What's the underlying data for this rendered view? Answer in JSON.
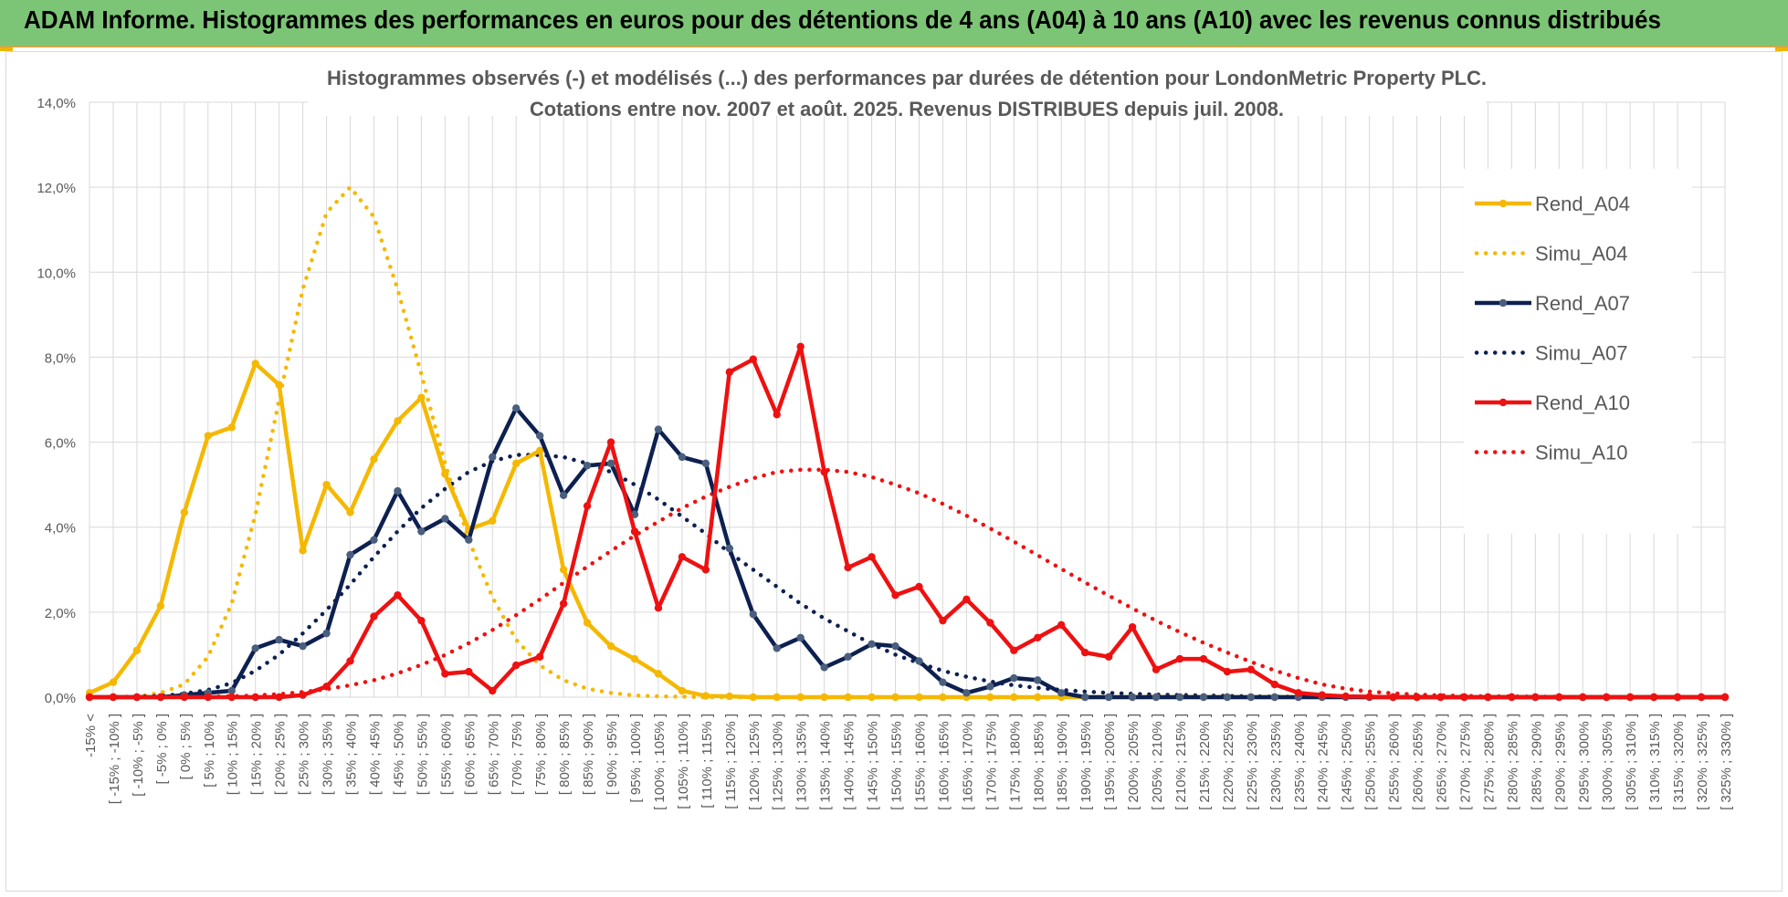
{
  "header": {
    "title": "ADAM Informe. Histogrammes des performances en euros pour des détentions de 4 ans (A04) à 10 ans (A10) avec les revenus connus distribués"
  },
  "chart_data": {
    "type": "line",
    "title_line1": "Histogrammes observés (-) et modélisés (...) des performances par durées de détention pour LondonMetric Property PLC.",
    "title_line2": "Cotations entre nov. 2007 et août. 2025. Revenus DISTRIBUES depuis juil. 2008.",
    "ylim": [
      0,
      14
    ],
    "y_ticks": [
      "0,0%",
      "2,0%",
      "4,0%",
      "6,0%",
      "8,0%",
      "10,0%",
      "12,0%",
      "14,0%"
    ],
    "grid": true,
    "legend_position": "right",
    "categories": [
      "-15% <",
      "[ -15% ; -10% ]",
      "[ -10% ; -5% ]",
      "[ -5% ; 0% ]",
      "[ 0% ; 5% ]",
      "[ 5% ; 10% ]",
      "[ 10% ; 15% ]",
      "[ 15% ; 20% ]",
      "[ 20% ; 25% ]",
      "[ 25% ; 30% ]",
      "[ 30% ; 35% ]",
      "[ 35% ; 40% ]",
      "[ 40% ; 45% ]",
      "[ 45% ; 50% ]",
      "[ 50% ; 55% ]",
      "[ 55% ; 60% ]",
      "[ 60% ; 65% ]",
      "[ 65% ; 70% ]",
      "[ 70% ; 75% ]",
      "[ 75% ; 80% ]",
      "[ 80% ; 85% ]",
      "[ 85% ; 90% ]",
      "[ 90% ; 95% ]",
      "[ 95% ; 100% ]",
      "[ 100% ; 105% ]",
      "[ 105% ; 110% ]",
      "[ 110% ; 115% ]",
      "[ 115% ; 120% ]",
      "[ 120% ; 125% ]",
      "[ 125% ; 130% ]",
      "[ 130% ; 135% ]",
      "[ 135% ; 140% ]",
      "[ 140% ; 145% ]",
      "[ 145% ; 150% ]",
      "[ 150% ; 155% ]",
      "[ 155% ; 160% ]",
      "[ 160% ; 165% ]",
      "[ 165% ; 170% ]",
      "[ 170% ; 175% ]",
      "[ 175% ; 180% ]",
      "[ 180% ; 185% ]",
      "[ 185% ; 190% ]",
      "[ 190% ; 195% ]",
      "[ 195% ; 200% ]",
      "[ 200% ; 205% ]",
      "[ 205% ; 210% ]",
      "[ 210% ; 215% ]",
      "[ 215% ; 220% ]",
      "[ 220% ; 225% ]",
      "[ 225% ; 230% ]",
      "[ 230% ; 235% ]",
      "[ 235% ; 240% ]",
      "[ 240% ; 245% ]",
      "[ 245% ; 250% ]",
      "[ 250% ; 255% ]",
      "[ 255% ; 260% ]",
      "[ 260% ; 265% ]",
      "[ 265% ; 270% ]",
      "[ 270% ; 275% ]",
      "[ 275% ; 280% ]",
      "[ 280% ; 285% ]",
      "[ 285% ; 290% ]",
      "[ 290% ; 295% ]",
      "[ 295% ; 300% ]",
      "[ 300% ; 305% ]",
      "[ 305% ; 310% ]",
      "[ 310% ; 315% ]",
      "[ 315% ; 320% ]",
      "[ 320% ; 325% ]",
      "[ 325% ; 330% ]"
    ],
    "series": [
      {
        "name": "Rend_A04",
        "style": "solid",
        "color": "#f5b800",
        "values": [
          0.1,
          0.35,
          1.1,
          2.15,
          4.35,
          6.15,
          6.35,
          7.85,
          7.35,
          3.45,
          5.0,
          4.35,
          5.6,
          6.5,
          7.05,
          5.25,
          3.95,
          4.15,
          5.5,
          5.8,
          3.0,
          1.75,
          1.2,
          0.9,
          0.55,
          0.15,
          0.03,
          0.02,
          0,
          0,
          0,
          0,
          0,
          0,
          0,
          0,
          0,
          0,
          0,
          0,
          0,
          0,
          0,
          0,
          0,
          0,
          0,
          0,
          0,
          0,
          0,
          0,
          0,
          0,
          0,
          0,
          0,
          0,
          0,
          0,
          0,
          0,
          0,
          0,
          0,
          0,
          0,
          0,
          0,
          0
        ]
      },
      {
        "name": "Simu_A04",
        "style": "dotted",
        "color": "#f5b800",
        "values": [
          0,
          0,
          0.02,
          0.1,
          0.3,
          0.95,
          2.2,
          4.3,
          7.0,
          9.6,
          11.4,
          12.0,
          11.3,
          9.6,
          7.6,
          5.5,
          3.7,
          2.35,
          1.35,
          0.75,
          0.4,
          0.2,
          0.1,
          0.04,
          0.02,
          0.01,
          0,
          0,
          0,
          0,
          0,
          0,
          0,
          0,
          0,
          0,
          0,
          0,
          0,
          0,
          0,
          0,
          0,
          0,
          0,
          0,
          0,
          0,
          0,
          0,
          0,
          0,
          0,
          0,
          0,
          0,
          0,
          0,
          0,
          0,
          0,
          0,
          0,
          0,
          0,
          0,
          0,
          0,
          0,
          0
        ]
      },
      {
        "name": "Rend_A07",
        "style": "solid",
        "color": "#0d2050",
        "values": [
          0,
          0,
          0,
          0,
          0.05,
          0.1,
          0.15,
          1.15,
          1.35,
          1.2,
          1.5,
          3.35,
          3.7,
          4.85,
          3.9,
          4.2,
          3.7,
          5.65,
          6.8,
          6.15,
          4.75,
          5.45,
          5.5,
          4.3,
          6.3,
          5.65,
          5.5,
          3.5,
          1.95,
          1.15,
          1.4,
          0.7,
          0.95,
          1.25,
          1.2,
          0.85,
          0.35,
          0.1,
          0.25,
          0.45,
          0.4,
          0.1,
          0,
          0,
          0,
          0,
          0,
          0,
          0,
          0,
          0,
          0,
          0,
          0,
          0,
          0,
          0,
          0,
          0,
          0,
          0,
          0,
          0,
          0,
          0,
          0,
          0,
          0,
          0,
          0
        ]
      },
      {
        "name": "Simu_A07",
        "style": "dotted",
        "color": "#0d2050",
        "values": [
          0,
          0,
          0.01,
          0.03,
          0.08,
          0.17,
          0.33,
          0.62,
          1.0,
          1.5,
          2.05,
          2.65,
          3.3,
          3.9,
          4.45,
          4.9,
          5.3,
          5.55,
          5.7,
          5.7,
          5.65,
          5.5,
          5.3,
          5.0,
          4.65,
          4.25,
          3.85,
          3.4,
          3.0,
          2.6,
          2.2,
          1.85,
          1.55,
          1.25,
          1.0,
          0.8,
          0.62,
          0.48,
          0.37,
          0.28,
          0.22,
          0.17,
          0.13,
          0.1,
          0.08,
          0.06,
          0.05,
          0.04,
          0.03,
          0.02,
          0.01,
          0.01,
          0,
          0,
          0,
          0,
          0,
          0,
          0,
          0,
          0,
          0,
          0,
          0,
          0,
          0,
          0,
          0,
          0,
          0
        ]
      },
      {
        "name": "Rend_A10",
        "style": "solid",
        "color": "#ee1111",
        "values": [
          0,
          0,
          0,
          0,
          0,
          0,
          0,
          0,
          0,
          0.05,
          0.25,
          0.85,
          1.9,
          2.4,
          1.8,
          0.55,
          0.6,
          0.15,
          0.75,
          0.95,
          2.2,
          4.5,
          6.0,
          3.9,
          2.1,
          3.3,
          3.0,
          7.65,
          7.95,
          6.65,
          8.25,
          5.3,
          3.05,
          3.3,
          2.4,
          2.6,
          1.8,
          2.3,
          1.75,
          1.1,
          1.4,
          1.7,
          1.05,
          0.95,
          1.65,
          0.65,
          0.9,
          0.9,
          0.6,
          0.65,
          0.3,
          0.1,
          0.05,
          0.02,
          0.01,
          0,
          0,
          0,
          0,
          0,
          0,
          0,
          0,
          0,
          0,
          0,
          0,
          0,
          0,
          0
        ]
      },
      {
        "name": "Simu_A10",
        "style": "dotted",
        "color": "#ee1111",
        "values": [
          0,
          0,
          0,
          0,
          0,
          0.01,
          0.02,
          0.04,
          0.07,
          0.12,
          0.19,
          0.28,
          0.4,
          0.56,
          0.76,
          0.99,
          1.27,
          1.58,
          1.93,
          2.3,
          2.69,
          3.07,
          3.44,
          3.8,
          4.13,
          4.45,
          4.72,
          4.95,
          5.15,
          5.3,
          5.35,
          5.35,
          5.3,
          5.18,
          5.0,
          4.8,
          4.55,
          4.27,
          3.97,
          3.66,
          3.34,
          3.02,
          2.7,
          2.39,
          2.09,
          1.8,
          1.53,
          1.28,
          1.05,
          0.83,
          0.63,
          0.45,
          0.3,
          0.2,
          0.13,
          0.09,
          0.06,
          0.04,
          0.03,
          0.02,
          0.02,
          0.01,
          0.01,
          0,
          0,
          0,
          0,
          0,
          0,
          0
        ]
      }
    ]
  }
}
